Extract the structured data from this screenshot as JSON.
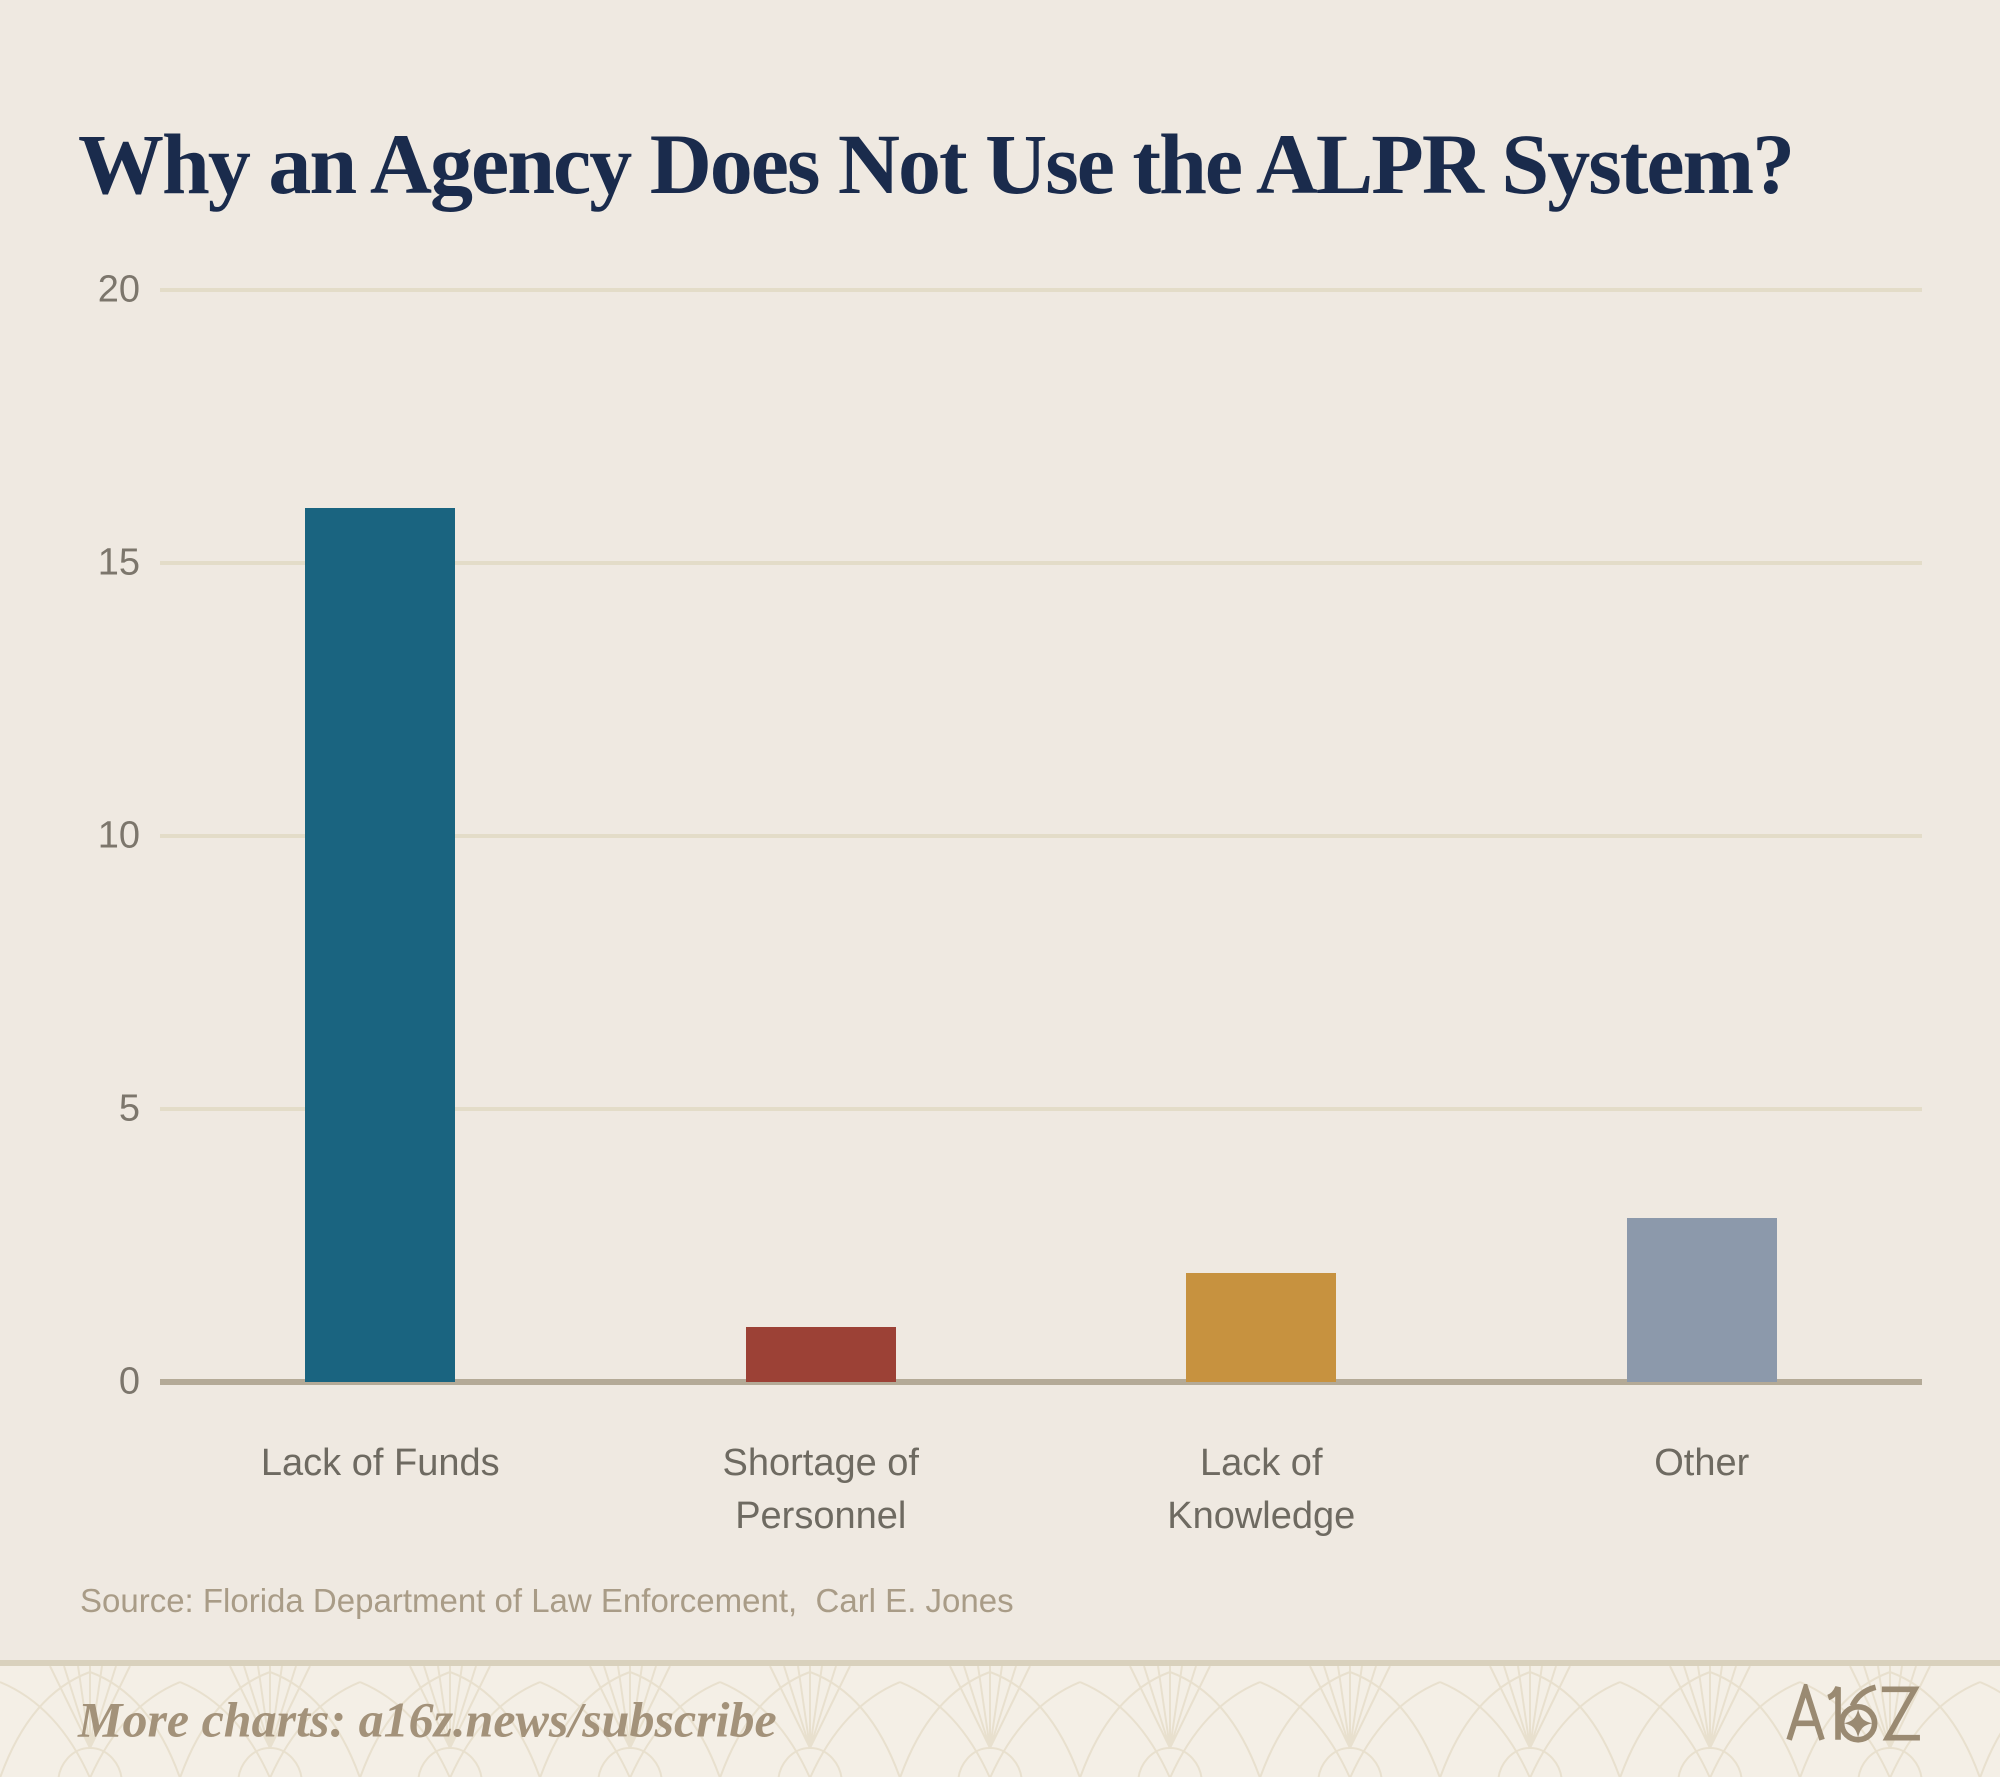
{
  "title": "Why an Agency Does Not Use the ALPR System?",
  "chart_data": {
    "type": "bar",
    "title": "Why an Agency Does Not Use the ALPR System?",
    "categories": [
      "Lack of Funds",
      "Shortage of Personnel",
      "Lack of Knowledge",
      "Other"
    ],
    "values": [
      16,
      1,
      2,
      3
    ],
    "bar_colors": [
      "#1A6480",
      "#9C4136",
      "#C7923F",
      "#8C99AB"
    ],
    "xlabel": "",
    "ylabel": "",
    "ylim": [
      0,
      20
    ],
    "yticks": [
      0,
      5,
      10,
      15,
      20
    ],
    "grid": "horizontal-light",
    "legend": "none"
  },
  "source": {
    "text": "Source: Florida Department of Law Enforcement,  Carl E. Jones"
  },
  "footer": {
    "more_charts": "More charts: a16z.news/subscribe",
    "logo_text": "A16Z"
  },
  "colors": {
    "background": "#EFE9E1",
    "title_text": "#1A2B4C",
    "gridline": "#E3DCC8",
    "axis_line": "#B4AA97",
    "tick_label": "#7C766C",
    "category_label": "#6E6A61",
    "source_text": "#A99C87",
    "divider": "#D9D1BD",
    "footer_background": "#F4EFE6",
    "footer_pattern": "#E7DDCA",
    "footer_text": "#A3927A",
    "logo": "#9A8A72"
  }
}
